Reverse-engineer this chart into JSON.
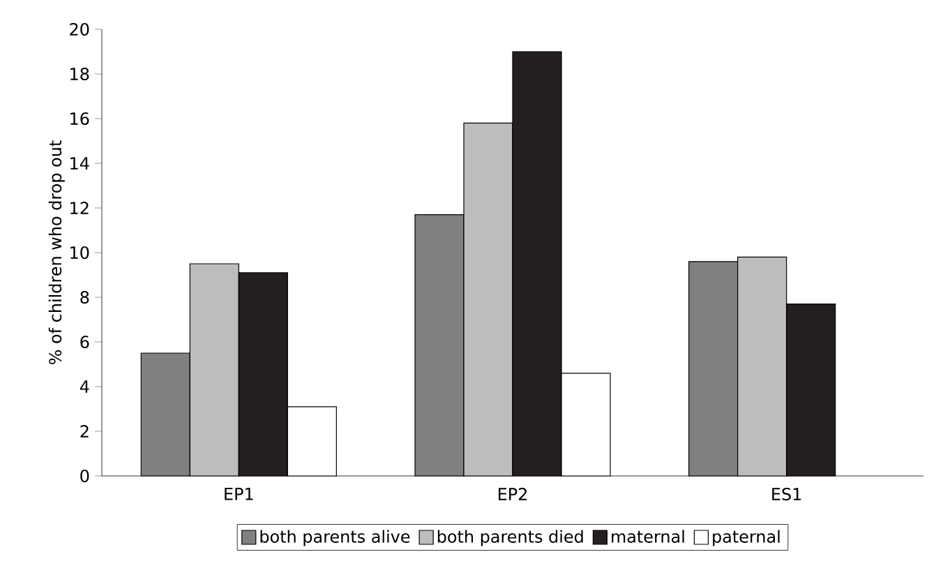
{
  "chart_data": {
    "type": "bar",
    "ylabel": "% of children who drop out",
    "categories": [
      "EP1",
      "EP2",
      "ES1"
    ],
    "series": [
      {
        "name": "both parents alive",
        "color": "#808080",
        "values": [
          5.5,
          11.7,
          9.6
        ]
      },
      {
        "name": "both parents died",
        "color": "#bdbdbd",
        "values": [
          9.5,
          15.8,
          9.8
        ]
      },
      {
        "name": "maternal",
        "color": "#231f20",
        "values": [
          9.1,
          19.0,
          7.7
        ]
      },
      {
        "name": "paternal",
        "color": "#ffffff",
        "values": [
          3.1,
          4.6,
          null
        ]
      }
    ],
    "ylim": [
      0,
      20
    ],
    "yticks": [
      0,
      2,
      4,
      6,
      8,
      10,
      12,
      14,
      16,
      18,
      20
    ],
    "legend": "bottom"
  }
}
